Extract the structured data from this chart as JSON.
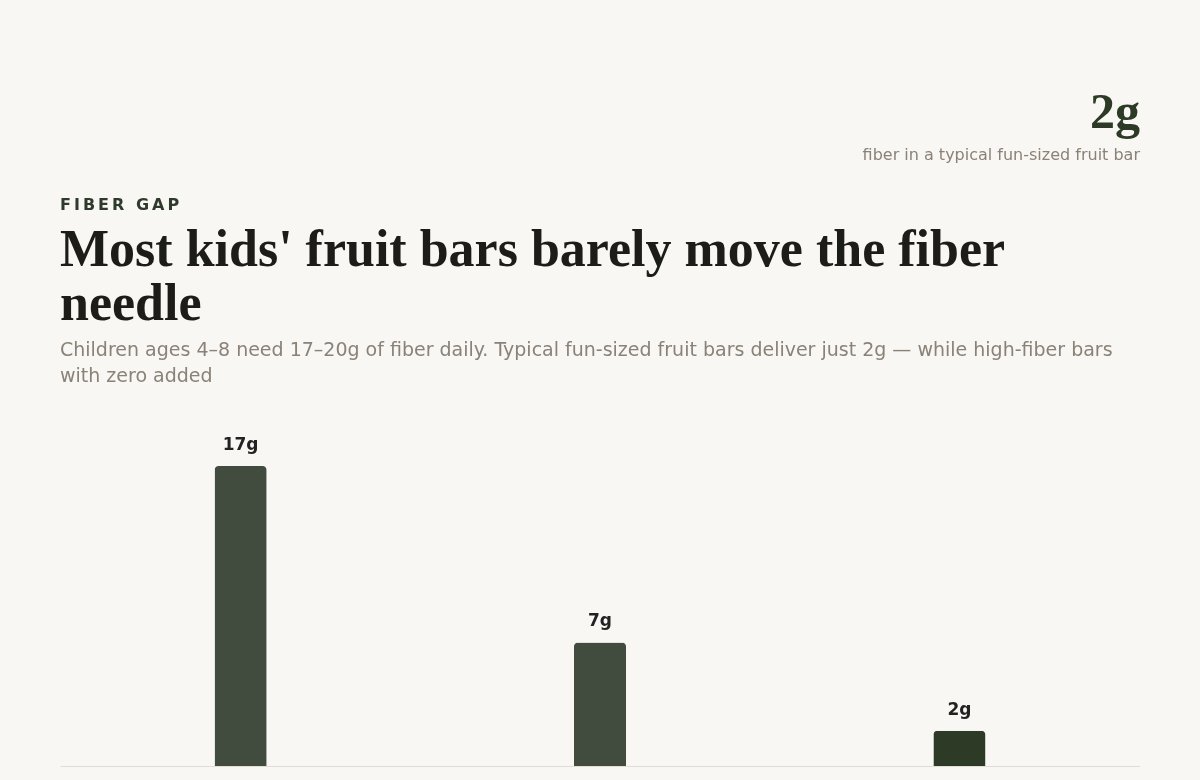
{
  "chart_data": {
    "type": "bar",
    "title": "Most kids' fruit bars barely move the fiber needle",
    "subtitle": "Children ages 4–8 need 17–20g of fiber daily. Typical fun-sized fruit bars deliver just 2g — while high-fiber bars with zero added",
    "annotations": [
      "FIBER GAP",
      "2g",
      "fiber in a typical fun-sized fruit bar"
    ],
    "categories": [
      null,
      null,
      null
    ],
    "values": [
      17,
      7,
      2
    ],
    "colors": [
      "#414c3e",
      "#414c3e",
      "#2c3a26"
    ],
    "value_labels": [
      "17g",
      "7g",
      "2g"
    ],
    "ylim": [
      0,
      17
    ]
  }
}
